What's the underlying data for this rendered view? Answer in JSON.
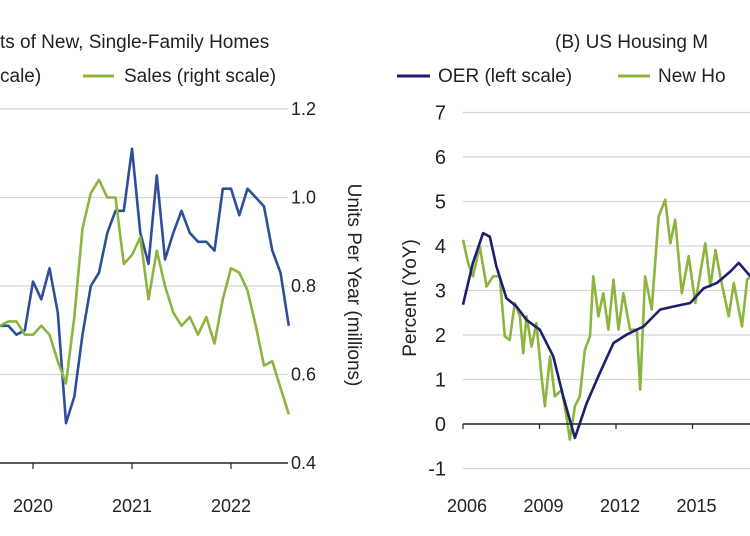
{
  "colors": {
    "blue": "#2d4f9a",
    "navy": "#1c1f6e",
    "green": "#8db43e",
    "grid": "#d4d4d4"
  },
  "chart_data": [
    {
      "type": "line",
      "title": "ts of New, Single-Family Homes",
      "legend": [
        {
          "label": "cale)",
          "color": "#2d4f9a"
        },
        {
          "label": "Sales (right scale)",
          "color": "#8db43e"
        }
      ],
      "ylabel": "Units Per Year (millions)",
      "ylim": [
        0.4,
        1.2
      ],
      "yticks": [
        "0.4",
        "0.6",
        "0.8",
        "1.0",
        "1.2"
      ],
      "xticks": [
        "2020",
        "2021",
        "2022"
      ],
      "grid": true,
      "x": [
        "2019-09",
        "2019-10",
        "2019-11",
        "2019-12",
        "2020-01",
        "2020-02",
        "2020-03",
        "2020-04",
        "2020-05",
        "2020-06",
        "2020-07",
        "2020-08",
        "2020-09",
        "2020-10",
        "2020-11",
        "2020-12",
        "2021-01",
        "2021-02",
        "2021-03",
        "2021-04",
        "2021-05",
        "2021-06",
        "2021-07",
        "2021-08",
        "2021-09",
        "2021-10",
        "2021-11",
        "2021-12",
        "2022-01",
        "2022-02",
        "2022-03",
        "2022-04",
        "2022-05",
        "2022-06",
        "2022-07",
        "2022-08"
      ],
      "series": [
        {
          "color": "#2d4f9a",
          "values": [
            0.71,
            0.71,
            0.69,
            0.7,
            0.81,
            0.77,
            0.84,
            0.74,
            0.49,
            0.55,
            0.69,
            0.8,
            0.83,
            0.92,
            0.97,
            0.97,
            1.11,
            0.92,
            0.85,
            1.05,
            0.86,
            0.92,
            0.97,
            0.92,
            0.9,
            0.9,
            0.88,
            1.02,
            1.02,
            0.96,
            1.02,
            1.0,
            0.98,
            0.88,
            0.83,
            0.71
          ]
        },
        {
          "name": "Sales (right scale)",
          "color": "#8db43e",
          "values": [
            0.71,
            0.72,
            0.72,
            0.69,
            0.69,
            0.71,
            0.69,
            0.63,
            0.58,
            0.73,
            0.93,
            1.01,
            1.04,
            1.0,
            1.0,
            0.85,
            0.87,
            0.91,
            0.77,
            0.88,
            0.8,
            0.74,
            0.71,
            0.73,
            0.69,
            0.73,
            0.67,
            0.77,
            0.84,
            0.83,
            0.79,
            0.71,
            0.62,
            0.63,
            0.57,
            0.51
          ]
        }
      ]
    },
    {
      "type": "line",
      "title": "(B) US Housing M",
      "legend": [
        {
          "label": "OER (left scale)",
          "color": "#1c1f6e"
        },
        {
          "label": "New Ho",
          "color": "#8db43e"
        }
      ],
      "ylabel": "Percent (YoY)",
      "ylim": [
        -1,
        7
      ],
      "yticks": [
        "-1",
        "0",
        "1",
        "2",
        "3",
        "4",
        "5",
        "6",
        "7"
      ],
      "xticks": [
        "2006",
        "2009",
        "2012",
        "2015"
      ],
      "grid": true,
      "series": [
        {
          "name": "OER (left scale)",
          "color": "#1c1f6e",
          "x": [
            2006.0,
            2006.39,
            2006.79,
            2007.05,
            2007.31,
            2007.7,
            2008.1,
            2008.49,
            2009.01,
            2009.54,
            2009.93,
            2010.39,
            2010.85,
            2011.37,
            2011.9,
            2012.42,
            2013.08,
            2013.73,
            2014.26,
            2014.91,
            2015.44,
            2015.96,
            2016.49,
            2016.81,
            2017.27
          ],
          "values": [
            2.68,
            3.62,
            4.29,
            4.21,
            3.54,
            2.83,
            2.64,
            2.34,
            2.12,
            1.52,
            0.62,
            -0.31,
            0.47,
            1.15,
            1.82,
            2.01,
            2.19,
            2.57,
            2.64,
            2.72,
            3.05,
            3.17,
            3.43,
            3.62,
            3.32
          ]
        },
        {
          "name": "New Ho",
          "color": "#8db43e",
          "x": [
            2006.0,
            2006.2,
            2006.39,
            2006.66,
            2006.92,
            2007.18,
            2007.44,
            2007.64,
            2007.83,
            2008.03,
            2008.23,
            2008.36,
            2008.49,
            2008.69,
            2008.88,
            2009.08,
            2009.21,
            2009.41,
            2009.6,
            2009.87,
            2010.06,
            2010.19,
            2010.39,
            2010.58,
            2010.78,
            2010.98,
            2011.11,
            2011.31,
            2011.5,
            2011.7,
            2011.9,
            2012.1,
            2012.29,
            2012.55,
            2012.82,
            2012.95,
            2013.14,
            2013.4,
            2013.67,
            2013.93,
            2014.13,
            2014.32,
            2014.58,
            2014.85,
            2015.11,
            2015.5,
            2015.7,
            2015.9,
            2016.09,
            2016.42,
            2016.62,
            2016.94,
            2017.14,
            2017.27
          ],
          "values": [
            4.14,
            3.62,
            3.32,
            3.99,
            3.09,
            3.32,
            3.32,
            1.97,
            1.89,
            2.72,
            2.42,
            1.59,
            2.42,
            1.74,
            2.27,
            1.07,
            0.4,
            1.52,
            0.62,
            0.77,
            0.17,
            -0.35,
            0.4,
            0.62,
            1.67,
            1.97,
            3.32,
            2.42,
            2.94,
            2.12,
            3.24,
            2.12,
            2.94,
            2.12,
            2.12,
            0.77,
            3.32,
            2.57,
            4.66,
            5.04,
            4.06,
            4.59,
            2.94,
            3.77,
            2.72,
            4.06,
            3.09,
            3.91,
            3.32,
            2.42,
            3.17,
            2.19,
            3.24,
            3.32
          ]
        }
      ]
    }
  ]
}
